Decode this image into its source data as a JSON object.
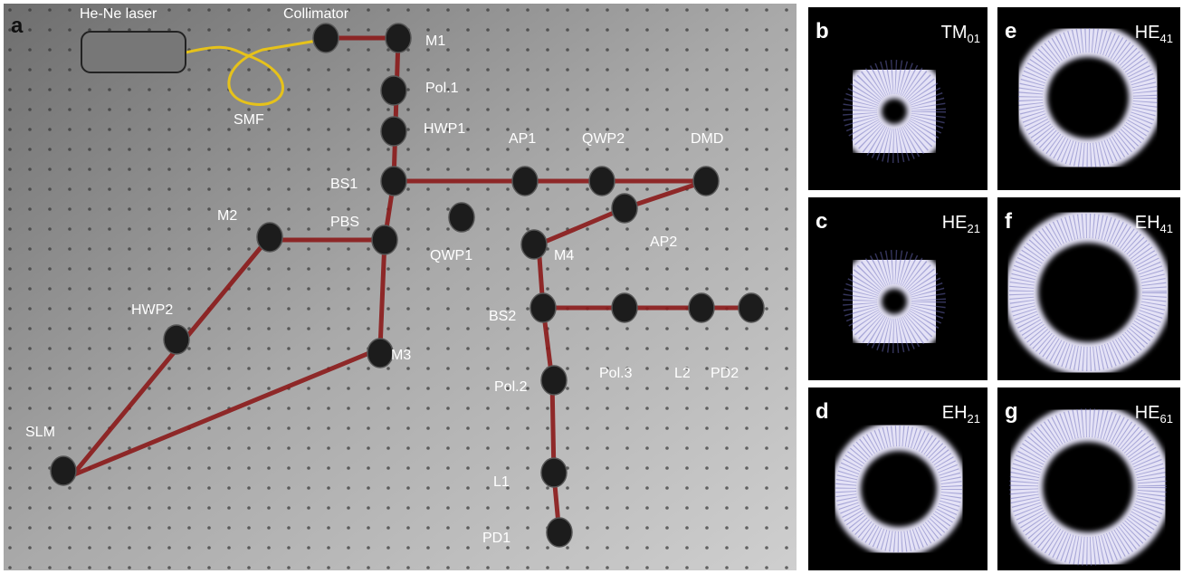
{
  "panel_a": {
    "letter": "a",
    "labels": [
      "He-Ne laser",
      "Collimator",
      "M1",
      "SMF",
      "Pol.1",
      "HWP1",
      "AP1",
      "QWP2",
      "DMD",
      "BS1",
      "M2",
      "PBS",
      "QWP1",
      "M4",
      "AP2",
      "HWP2",
      "BS2",
      "M3",
      "Pol.3",
      "L2",
      "PD2",
      "Pol.2",
      "SLM",
      "L1",
      "PD1"
    ]
  },
  "mode_panels": [
    {
      "letter": "b",
      "mode": "TM",
      "index": "01"
    },
    {
      "letter": "c",
      "mode": "HE",
      "index": "21"
    },
    {
      "letter": "d",
      "mode": "EH",
      "index": "21"
    },
    {
      "letter": "e",
      "mode": "HE",
      "index": "41"
    },
    {
      "letter": "f",
      "mode": "EH",
      "index": "41"
    },
    {
      "letter": "g",
      "mode": "HE",
      "index": "61"
    }
  ]
}
